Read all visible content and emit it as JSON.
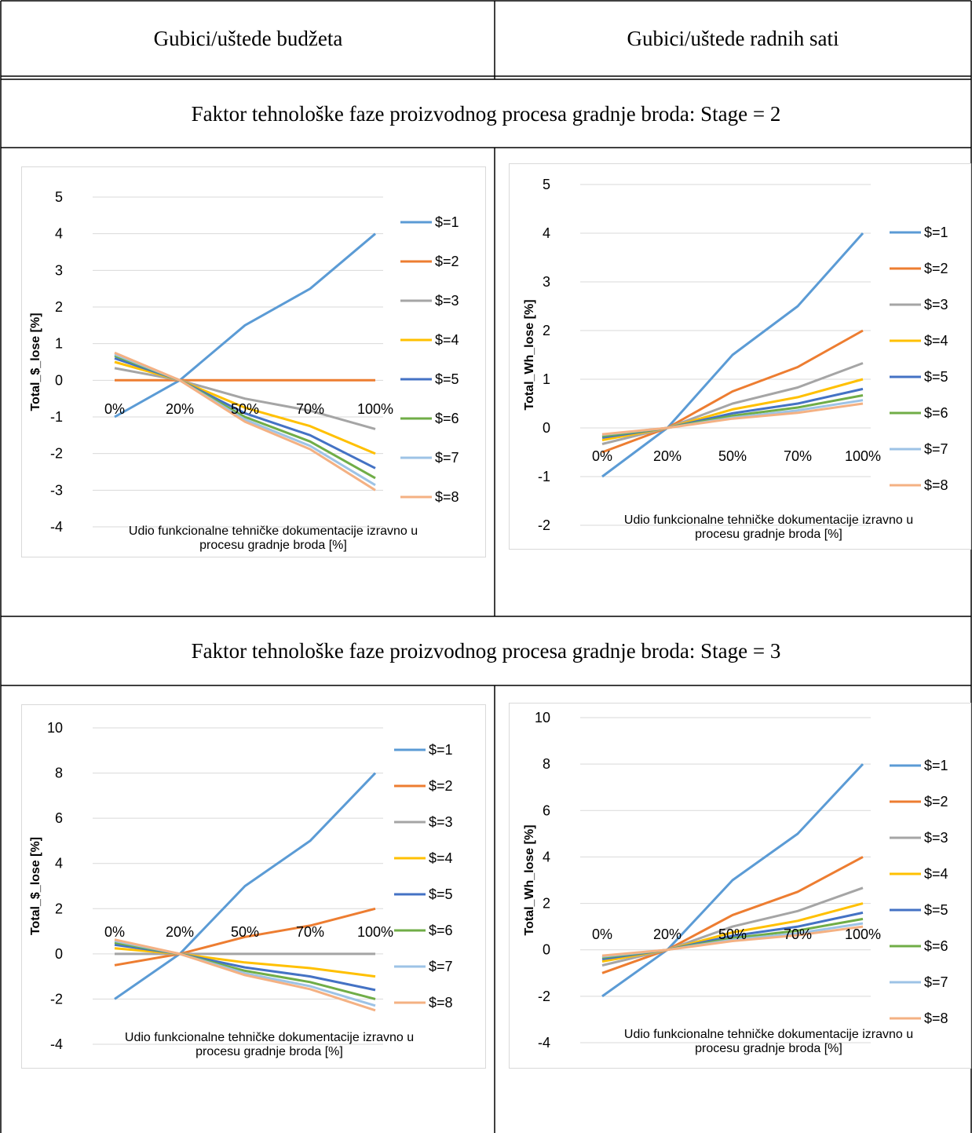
{
  "table": {
    "col_headers": [
      "Gubici/uštede budžeta",
      "Gubici/uštede radnih sati"
    ],
    "stage2_title": "Faktor tehnološke faze proizvodnog procesa gradnje broda: Stage = 2",
    "stage3_title": "Faktor tehnološke faze proizvodnog procesa gradnje broda: Stage = 3"
  },
  "colors": [
    "#5b9bd5",
    "#ed7d31",
    "#a5a5a5",
    "#ffc000",
    "#4472c4",
    "#70ad47",
    "#9dc3e6",
    "#f4b183"
  ],
  "chart_data": [
    {
      "type": "line",
      "categories": [
        "0%",
        "20%",
        "50%",
        "70%",
        "100%"
      ],
      "ylabel": "Total_$_lose [%]",
      "xlabel_line1": "Udio funkcionalne tehničke dokumentacije izravno u",
      "xlabel_line2": "procesu gradnje broda [%]",
      "ylim": [
        -4,
        5
      ],
      "yticks": [
        5,
        4,
        3,
        2,
        1,
        0,
        -1,
        -2,
        -3,
        -4
      ],
      "series": [
        {
          "name": "$=1",
          "values": [
            -1,
            0,
            1.5,
            2.5,
            4
          ]
        },
        {
          "name": "$=2",
          "values": [
            0,
            0,
            0,
            0,
            0
          ]
        },
        {
          "name": "$=3",
          "values": [
            0.33,
            0,
            -0.5,
            -0.83,
            -1.33
          ]
        },
        {
          "name": "$=4",
          "values": [
            0.5,
            0,
            -0.75,
            -1.25,
            -2
          ]
        },
        {
          "name": "$=5",
          "values": [
            0.6,
            0,
            -0.9,
            -1.5,
            -2.4
          ]
        },
        {
          "name": "$=6",
          "values": [
            0.67,
            0,
            -1,
            -1.67,
            -2.67
          ]
        },
        {
          "name": "$=7",
          "values": [
            0.71,
            0,
            -1.07,
            -1.79,
            -2.86
          ]
        },
        {
          "name": "$=8",
          "values": [
            0.75,
            0,
            -1.13,
            -1.88,
            -3
          ]
        }
      ]
    },
    {
      "type": "line",
      "categories": [
        "0%",
        "20%",
        "50%",
        "70%",
        "100%"
      ],
      "ylabel": "Total_Wh_lose [%]",
      "xlabel_line1": "Udio funkcionalne tehničke dokumentacije izravno u",
      "xlabel_line2": "procesu gradnje broda [%]",
      "ylim": [
        -2,
        5
      ],
      "yticks": [
        5,
        4,
        3,
        2,
        1,
        0,
        -1,
        -2
      ],
      "series": [
        {
          "name": "$=1",
          "values": [
            -1,
            0,
            1.5,
            2.5,
            4
          ]
        },
        {
          "name": "$=2",
          "values": [
            -0.5,
            0,
            0.75,
            1.25,
            2
          ]
        },
        {
          "name": "$=3",
          "values": [
            -0.33,
            0,
            0.5,
            0.83,
            1.33
          ]
        },
        {
          "name": "$=4",
          "values": [
            -0.25,
            0,
            0.38,
            0.63,
            1
          ]
        },
        {
          "name": "$=5",
          "values": [
            -0.2,
            0,
            0.3,
            0.5,
            0.8
          ]
        },
        {
          "name": "$=6",
          "values": [
            -0.17,
            0,
            0.25,
            0.42,
            0.67
          ]
        },
        {
          "name": "$=7",
          "values": [
            -0.14,
            0,
            0.21,
            0.36,
            0.57
          ]
        },
        {
          "name": "$=8",
          "values": [
            -0.13,
            0,
            0.19,
            0.31,
            0.5
          ]
        }
      ]
    },
    {
      "type": "line",
      "categories": [
        "0%",
        "20%",
        "50%",
        "70%",
        "100%"
      ],
      "ylabel": "Total_$_lose [%]",
      "xlabel_line1": "Udio funkcionalne tehničke dokumentacije izravno u",
      "xlabel_line2": "procesu gradnje broda [%]",
      "ylim": [
        -4,
        10
      ],
      "yticks": [
        10,
        8,
        6,
        4,
        2,
        0,
        -2,
        -4
      ],
      "series": [
        {
          "name": "$=1",
          "values": [
            -2,
            0,
            3,
            5,
            8
          ]
        },
        {
          "name": "$=2",
          "values": [
            -0.5,
            0,
            0.75,
            1.25,
            2
          ]
        },
        {
          "name": "$=3",
          "values": [
            0,
            0,
            0,
            0,
            0
          ]
        },
        {
          "name": "$=4",
          "values": [
            0.25,
            0,
            -0.38,
            -0.63,
            -1
          ]
        },
        {
          "name": "$=5",
          "values": [
            0.4,
            0,
            -0.6,
            -1,
            -1.6
          ]
        },
        {
          "name": "$=6",
          "values": [
            0.5,
            0,
            -0.75,
            -1.25,
            -2
          ]
        },
        {
          "name": "$=7",
          "values": [
            0.57,
            0,
            -0.86,
            -1.43,
            -2.29
          ]
        },
        {
          "name": "$=8",
          "values": [
            0.63,
            0,
            -0.94,
            -1.56,
            -2.5
          ]
        }
      ]
    },
    {
      "type": "line",
      "categories": [
        "0%",
        "20%",
        "50%",
        "70%",
        "100%"
      ],
      "ylabel": "Total_Wh_lose [%]",
      "xlabel_line1": "Udio funkcionalne tehničke dokumentacije izravno u",
      "xlabel_line2": "procesu gradnje broda [%]",
      "ylim": [
        -4,
        10
      ],
      "yticks": [
        10,
        8,
        6,
        4,
        2,
        0,
        -2,
        -4
      ],
      "series": [
        {
          "name": "$=1",
          "values": [
            -2,
            0,
            3,
            5,
            8
          ]
        },
        {
          "name": "$=2",
          "values": [
            -1,
            0,
            1.5,
            2.5,
            4
          ]
        },
        {
          "name": "$=3",
          "values": [
            -0.67,
            0,
            1,
            1.67,
            2.67
          ]
        },
        {
          "name": "$=4",
          "values": [
            -0.5,
            0,
            0.75,
            1.25,
            2
          ]
        },
        {
          "name": "$=5",
          "values": [
            -0.4,
            0,
            0.6,
            1,
            1.6
          ]
        },
        {
          "name": "$=6",
          "values": [
            -0.33,
            0,
            0.5,
            0.83,
            1.33
          ]
        },
        {
          "name": "$=7",
          "values": [
            -0.29,
            0,
            0.43,
            0.71,
            1.14
          ]
        },
        {
          "name": "$=8",
          "values": [
            -0.25,
            0,
            0.38,
            0.63,
            1
          ]
        }
      ]
    }
  ]
}
